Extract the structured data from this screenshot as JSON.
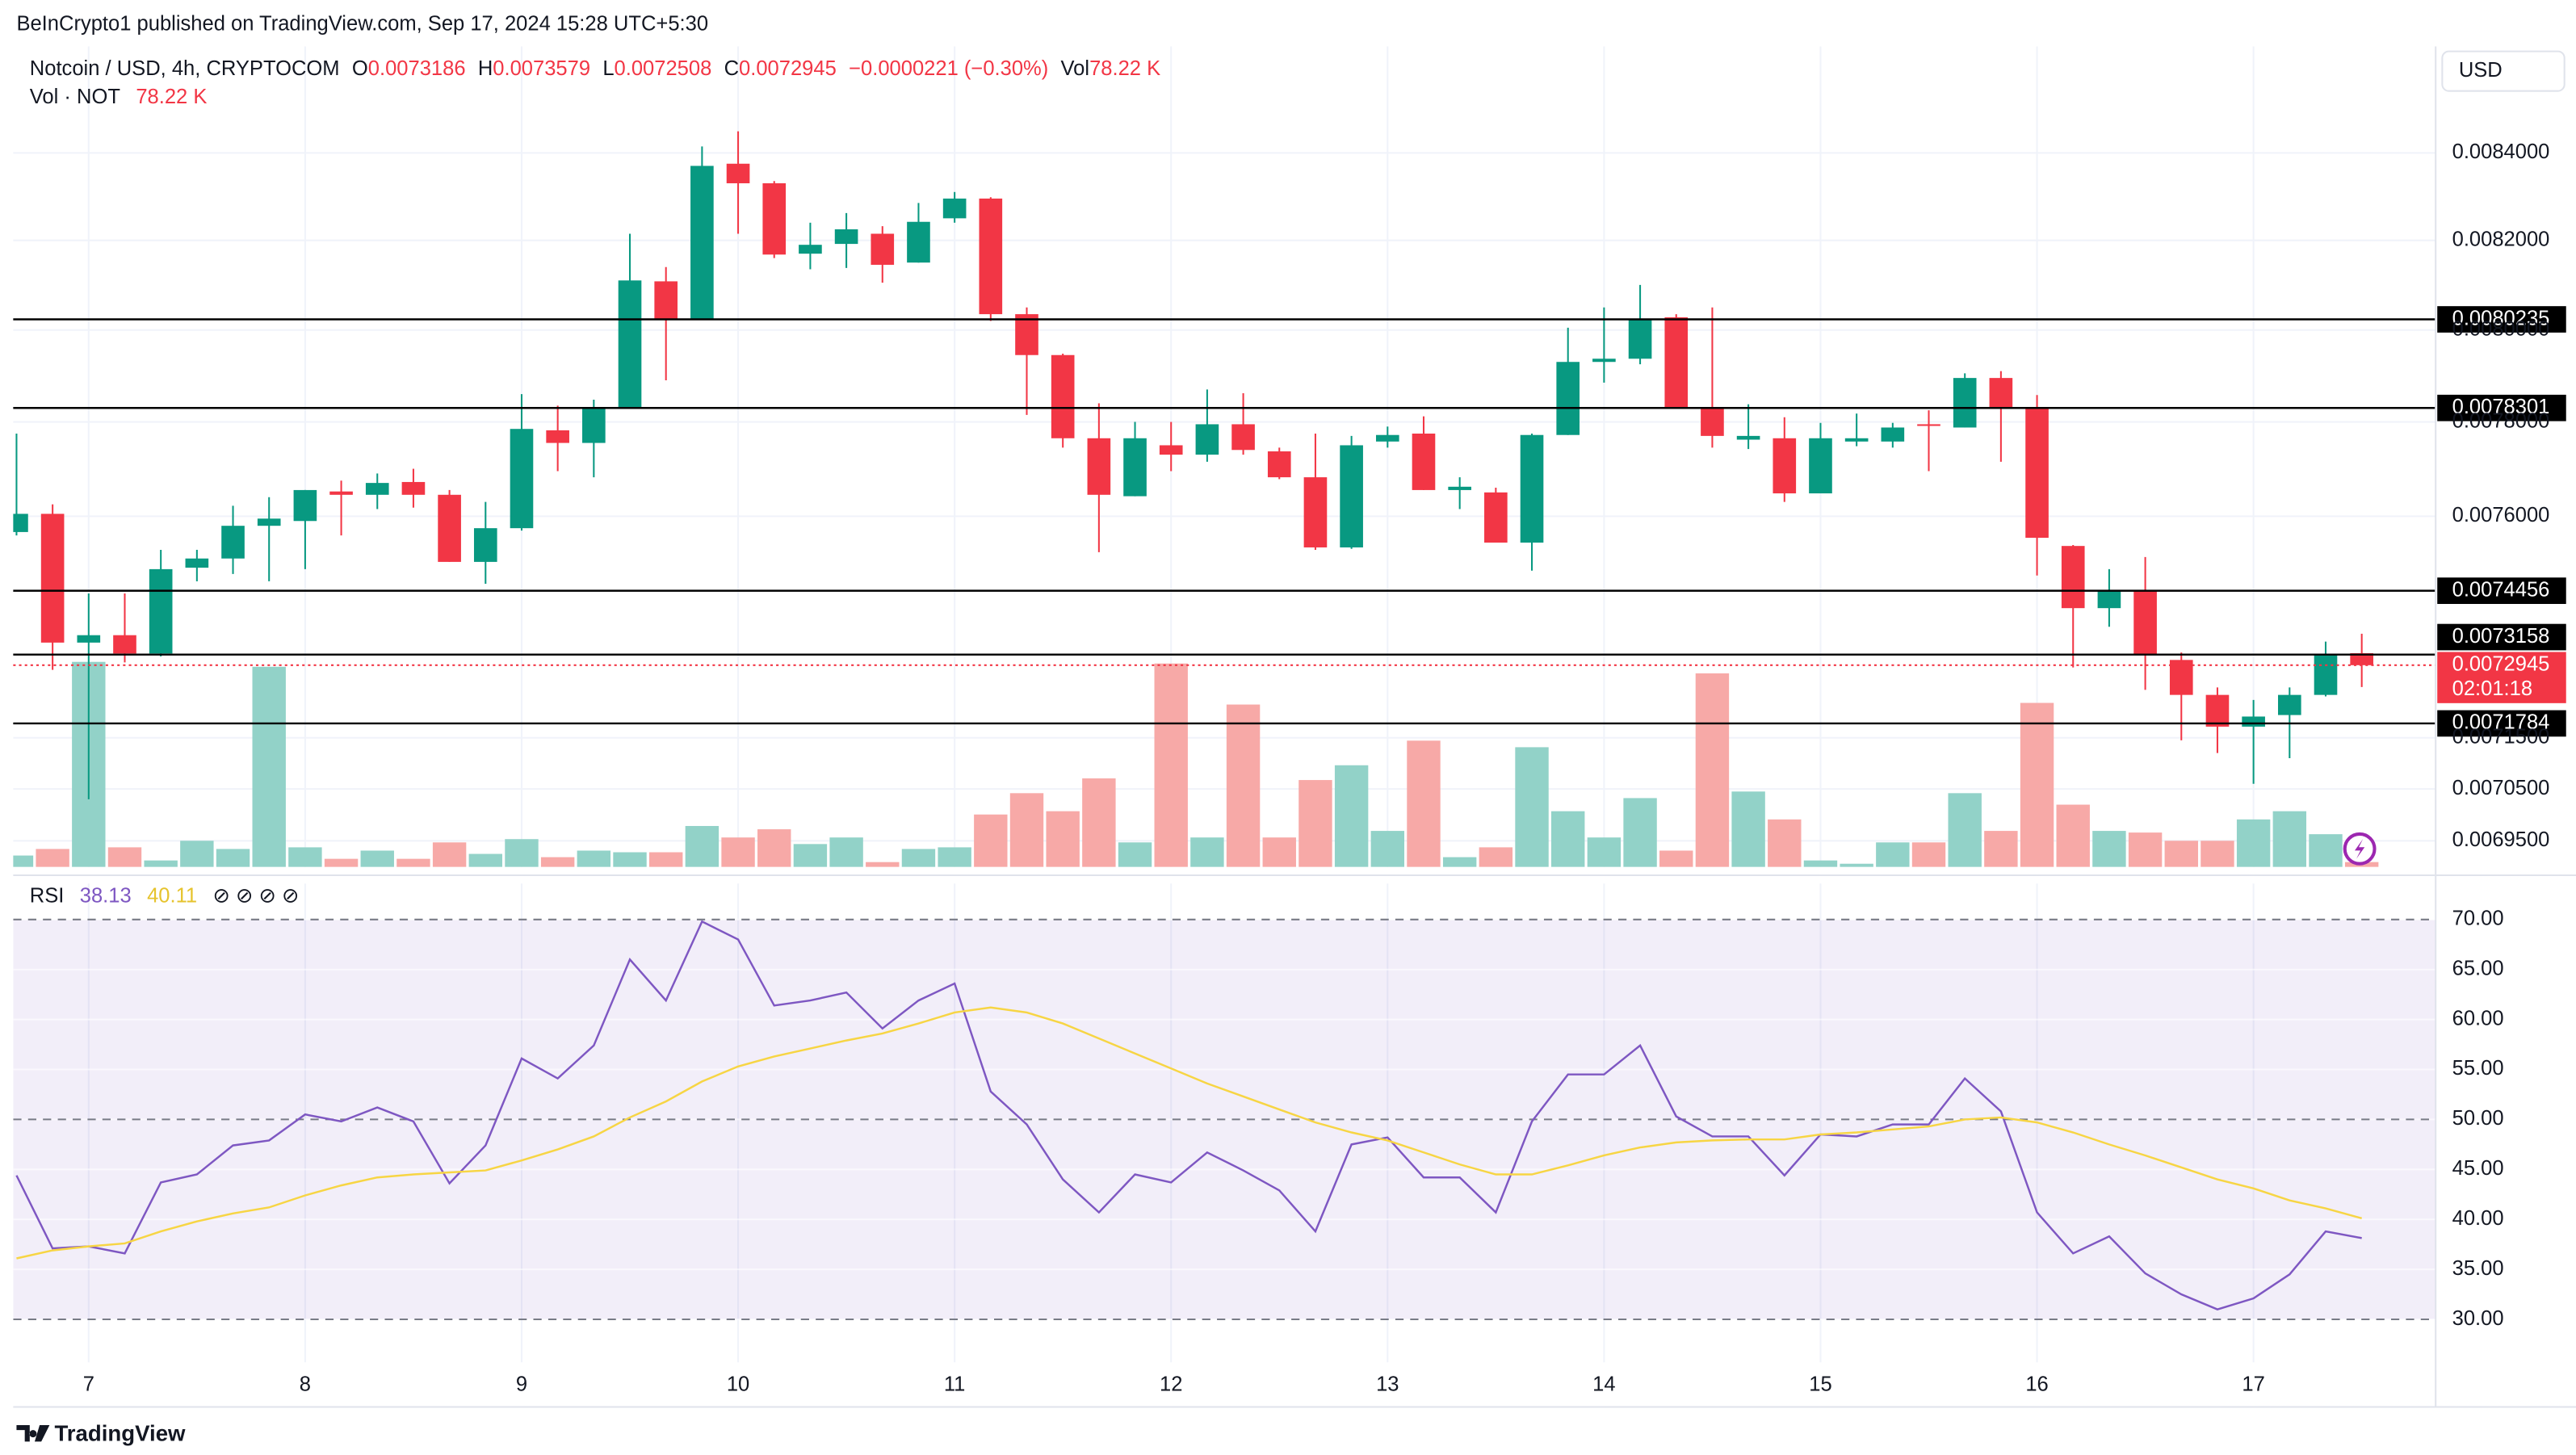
{
  "header": {
    "publisher": "BeInCrypto1 published on TradingView.com, Sep 17, 2024 15:28 UTC+5:30",
    "symbol": "Notcoin / USD, 4h, CRYPTOCOM",
    "ohlc_keys": [
      "O",
      "H",
      "L",
      "C"
    ],
    "change": "−0.0000221 (−0.30%)",
    "vol_key": "Vol",
    "vol_text": "78.22 K",
    "vol_series": "Vol · NOT",
    "currency": "USD",
    "countdown": "02:01:18",
    "rsi_name": "RSI",
    "rsi_extras": "⊘ ⊘ ⊘ ⊘",
    "brand": "TradingView"
  },
  "chart_data": [
    {
      "type": "candlestick",
      "log_scale": true,
      "grid": true,
      "up_color": "#089981",
      "down_color": "#f23645",
      "volume_up_color": "#92d2c8",
      "volume_down_color": "#f7a9a7",
      "level_color": "#000000",
      "categories": [
        null,
        null,
        "7",
        null,
        null,
        null,
        null,
        null,
        "8",
        null,
        null,
        null,
        null,
        null,
        "9",
        null,
        null,
        null,
        null,
        null,
        "10",
        null,
        null,
        null,
        null,
        null,
        "11",
        null,
        null,
        null,
        null,
        null,
        "12",
        null,
        null,
        null,
        null,
        null,
        "13",
        null,
        null,
        null,
        null,
        null,
        "14",
        null,
        null,
        null,
        null,
        null,
        "15",
        null,
        null,
        null,
        null,
        null,
        "16",
        null,
        null,
        null,
        null,
        null,
        "17",
        null,
        null,
        null
      ],
      "open": [
        0.007567,
        0.007605,
        0.00734,
        0.007355,
        0.007318,
        0.007493,
        0.007512,
        0.00758,
        0.00759,
        0.007652,
        0.007645,
        0.007672,
        0.007645,
        0.007505,
        0.007575,
        0.007782,
        0.007755,
        0.00783,
        0.008108,
        0.008025,
        0.008375,
        0.00833,
        0.00817,
        0.008192,
        0.008215,
        0.00815,
        0.00825,
        0.008295,
        0.008035,
        0.007945,
        0.007765,
        0.007642,
        0.00775,
        0.00773,
        0.007795,
        0.007737,
        0.007682,
        0.007535,
        0.007758,
        0.007775,
        0.007655,
        0.00765,
        0.007545,
        0.007772,
        0.00793,
        0.007937,
        0.008028,
        0.007832,
        0.007762,
        0.007765,
        0.007648,
        0.007758,
        0.007758,
        0.007795,
        0.007788,
        0.007895,
        0.00783,
        0.007538,
        0.00741,
        0.007445,
        0.007305,
        0.007235,
        0.007172,
        0.007195,
        0.007235,
        0.0073186
      ],
      "high": [
        0.007775,
        0.007625,
        0.00744,
        0.00744,
        0.00753,
        0.00753,
        0.007622,
        0.00764,
        0.007655,
        0.007675,
        0.00769,
        0.0077,
        0.007655,
        0.00763,
        0.00786,
        0.007835,
        0.007848,
        0.008215,
        0.00814,
        0.008415,
        0.00845,
        0.008335,
        0.00824,
        0.008262,
        0.008232,
        0.008285,
        0.00831,
        0.008298,
        0.00805,
        0.007948,
        0.00784,
        0.0078,
        0.0078,
        0.00787,
        0.007862,
        0.007745,
        0.007775,
        0.00777,
        0.00779,
        0.007812,
        0.007682,
        0.00766,
        0.007775,
        0.008005,
        0.00805,
        0.0081,
        0.008035,
        0.00805,
        0.007838,
        0.00781,
        0.007798,
        0.007818,
        0.007798,
        0.007825,
        0.007905,
        0.00791,
        0.007858,
        0.00754,
        0.00749,
        0.007515,
        0.00732,
        0.00725,
        0.007225,
        0.00725,
        0.007342,
        0.0073579
      ],
      "low": [
        0.00756,
        0.007285,
        0.00703,
        0.0073,
        0.007312,
        0.007465,
        0.00748,
        0.007465,
        0.00749,
        0.00756,
        0.007615,
        0.007618,
        0.007505,
        0.00746,
        0.00757,
        0.007695,
        0.007682,
        0.00783,
        0.00789,
        0.008022,
        0.008215,
        0.00816,
        0.008135,
        0.008138,
        0.008105,
        0.00815,
        0.00824,
        0.00802,
        0.007815,
        0.007745,
        0.007525,
        0.007642,
        0.007695,
        0.007715,
        0.00773,
        0.007678,
        0.00753,
        0.007532,
        0.007745,
        0.007655,
        0.007615,
        0.007545,
        0.007487,
        0.007772,
        0.007885,
        0.007925,
        0.00783,
        0.007745,
        0.007742,
        0.00763,
        0.007648,
        0.007748,
        0.007745,
        0.007695,
        0.007788,
        0.007715,
        0.007477,
        0.00729,
        0.007372,
        0.007245,
        0.007145,
        0.00712,
        0.00706,
        0.00711,
        0.007232,
        0.0072508
      ],
      "close": [
        0.007605,
        0.00734,
        0.007355,
        0.007318,
        0.00749,
        0.007512,
        0.00758,
        0.007595,
        0.007655,
        0.007645,
        0.00767,
        0.007645,
        0.007505,
        0.007575,
        0.007785,
        0.007755,
        0.00783,
        0.00811,
        0.008025,
        0.00837,
        0.00833,
        0.008168,
        0.00819,
        0.008225,
        0.008145,
        0.008242,
        0.008295,
        0.008035,
        0.007945,
        0.007765,
        0.007645,
        0.007765,
        0.00773,
        0.007795,
        0.00774,
        0.007682,
        0.007535,
        0.00775,
        0.007772,
        0.007655,
        0.007662,
        0.007545,
        0.007772,
        0.00793,
        0.007937,
        0.008025,
        0.007832,
        0.00777,
        0.00777,
        0.007648,
        0.007765,
        0.007765,
        0.007788,
        0.007792,
        0.007895,
        0.00783,
        0.007555,
        0.00741,
        0.007445,
        0.007315,
        0.007235,
        0.007172,
        0.007192,
        0.007235,
        0.007316,
        0.0072945
      ],
      "volume": [
        182000,
        286000,
        3250000,
        312000,
        104000,
        416000,
        286000,
        3172000,
        312000,
        130000,
        260000,
        130000,
        390000,
        208000,
        442000,
        156000,
        260000,
        234000,
        234000,
        650000,
        468000,
        598000,
        364000,
        468000,
        78000,
        286000,
        312000,
        832000,
        1170000,
        884000,
        1404000,
        390000,
        3224000,
        468000,
        2574000,
        468000,
        1378000,
        1612000,
        572000,
        2002000,
        156000,
        312000,
        1898000,
        884000,
        468000,
        1092000,
        260000,
        3068000,
        1196000,
        754000,
        104000,
        52000,
        390000,
        390000,
        1170000,
        572000,
        2600000,
        988000,
        572000,
        546000,
        416000,
        416000,
        754000,
        884000,
        520000,
        78220
      ],
      "vlim": [
        0,
        13000000
      ],
      "ylim": [
        0.0069,
        0.00865
      ],
      "yticks": [
        {
          "value": 0.0084,
          "label": "0.0084000"
        },
        {
          "value": 0.0082,
          "label": "0.0082000"
        },
        {
          "value": 0.008,
          "label": "0.0080000"
        },
        {
          "value": 0.0078,
          "label": "0.0078000"
        },
        {
          "value": 0.0076,
          "label": "0.0076000"
        },
        {
          "value": 0.00715,
          "label": "0.0071500"
        },
        {
          "value": 0.00705,
          "label": "0.0070500"
        },
        {
          "value": 0.00695,
          "label": "0.0069500"
        }
      ],
      "levels": [
        0.0080235,
        0.0078301,
        0.0074456,
        0.0073158,
        0.0071784
      ]
    },
    {
      "type": "line",
      "series": [
        {
          "name": "RSI",
          "color": "#7e57c2",
          "values": [
            44.4,
            37.1,
            37.3,
            36.6,
            43.7,
            44.5,
            47.4,
            47.9,
            50.5,
            49.8,
            51.2,
            49.8,
            43.6,
            47.4,
            56.1,
            54.1,
            57.4,
            66,
            61.9,
            69.8,
            68,
            61.4,
            61.9,
            62.7,
            59.1,
            61.9,
            63.6,
            52.8,
            49.5,
            44,
            40.7,
            44.5,
            43.7,
            46.7,
            44.9,
            42.9,
            38.8,
            47.5,
            48.2,
            44.2,
            44.2,
            40.7,
            49.8,
            54.5,
            54.5,
            57.4,
            50.3,
            48.3,
            48.3,
            44.4,
            48.5,
            48.3,
            49.5,
            49.5,
            54.1,
            50.8,
            40.7,
            36.6,
            38.3,
            34.6,
            32.5,
            31,
            32.1,
            34.5,
            38.8,
            38.13
          ]
        },
        {
          "name": "MA",
          "color": "#f7d544",
          "values": [
            36.1,
            36.9,
            37.3,
            37.6,
            38.8,
            39.8,
            40.6,
            41.2,
            42.4,
            43.4,
            44.2,
            44.5,
            44.7,
            44.9,
            45.9,
            47,
            48.3,
            50.2,
            51.8,
            53.8,
            55.3,
            56.3,
            57.1,
            57.9,
            58.6,
            59.6,
            60.7,
            61.2,
            60.7,
            59.6,
            58.1,
            56.6,
            55.1,
            53.6,
            52.3,
            51,
            49.7,
            48.7,
            47.9,
            46.7,
            45.5,
            44.5,
            44.5,
            45.4,
            46.4,
            47.2,
            47.7,
            47.9,
            48,
            48,
            48.5,
            48.7,
            49,
            49.3,
            50,
            50.2,
            49.7,
            48.7,
            47.5,
            46.4,
            45.2,
            44,
            43.1,
            41.9,
            41.1,
            40.11
          ]
        }
      ],
      "ylim": [
        25.7,
        73.6
      ],
      "yticks": [
        {
          "value": 30,
          "label": "30.00"
        },
        {
          "value": 35,
          "label": "35.00"
        },
        {
          "value": 40,
          "label": "40.00"
        },
        {
          "value": 45,
          "label": "45.00"
        },
        {
          "value": 50,
          "label": "50.00"
        },
        {
          "value": 55,
          "label": "55.00"
        },
        {
          "value": 60,
          "label": "60.00"
        },
        {
          "value": 65,
          "label": "65.00"
        },
        {
          "value": 70,
          "label": "70.00"
        }
      ],
      "levels": [
        30,
        50,
        70
      ],
      "band_color": "#7e57c2"
    }
  ]
}
